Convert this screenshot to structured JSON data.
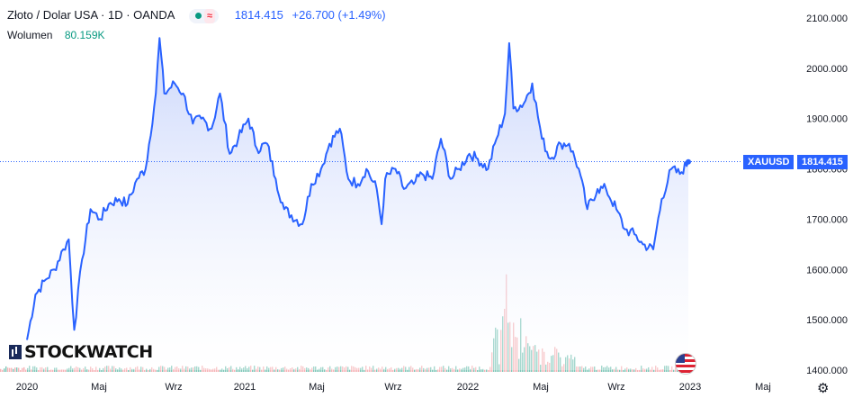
{
  "header": {
    "symbol_title": "Złoto / Dolar USA · 1D · OANDA",
    "price": "1814.415",
    "change": "+26.700 (+1.49%)",
    "wave_icon": "≈"
  },
  "volume": {
    "label": "Wolumen",
    "value": "80.159K"
  },
  "price_tag": {
    "ticker": "XAUUSD",
    "price": "1814.415"
  },
  "logo": {
    "text": "STOCKWATCH"
  },
  "settings_icon": "⚙",
  "colors": {
    "line": "#2962ff",
    "fill_top": "#c5d2fb",
    "vol_up": "#5fb9a8",
    "vol_down": "#f2a1a5",
    "tag": "#2962ff"
  },
  "chart_data": {
    "type": "area",
    "y_ticks": [
      "2100.000",
      "2000.000",
      "1900.000",
      "1800.000",
      "1700.000",
      "1600.000",
      "1500.000",
      "1400.000"
    ],
    "x_ticks": [
      "2020",
      "Maj",
      "Wrz",
      "2021",
      "Maj",
      "Wrz",
      "2022",
      "Maj",
      "Wrz",
      "2023",
      "Maj"
    ],
    "ylim": [
      1400,
      2100
    ],
    "current_price": 1814.415,
    "x": [
      "2020-01-01",
      "2020-01-15",
      "2020-02-01",
      "2020-02-15",
      "2020-03-01",
      "2020-03-10",
      "2020-03-19",
      "2020-04-01",
      "2020-04-15",
      "2020-05-01",
      "2020-05-15",
      "2020-06-01",
      "2020-06-15",
      "2020-07-01",
      "2020-07-15",
      "2020-08-01",
      "2020-08-07",
      "2020-08-15",
      "2020-09-01",
      "2020-09-15",
      "2020-10-01",
      "2020-10-15",
      "2020-11-01",
      "2020-11-15",
      "2020-12-01",
      "2020-12-15",
      "2021-01-01",
      "2021-01-15",
      "2021-02-01",
      "2021-02-15",
      "2021-03-01",
      "2021-03-31",
      "2021-04-15",
      "2021-05-01",
      "2021-05-15",
      "2021-06-01",
      "2021-06-15",
      "2021-07-01",
      "2021-07-15",
      "2021-08-01",
      "2021-08-09",
      "2021-08-15",
      "2021-09-01",
      "2021-09-15",
      "2021-10-01",
      "2021-10-15",
      "2021-11-01",
      "2021-11-15",
      "2021-12-01",
      "2021-12-15",
      "2022-01-01",
      "2022-01-15",
      "2022-02-01",
      "2022-02-15",
      "2022-03-01",
      "2022-03-08",
      "2022-03-15",
      "2022-04-01",
      "2022-04-15",
      "2022-05-01",
      "2022-05-15",
      "2022-06-01",
      "2022-06-15",
      "2022-07-01",
      "2022-07-15",
      "2022-08-01",
      "2022-08-15",
      "2022-09-01",
      "2022-09-15",
      "2022-10-01",
      "2022-10-15",
      "2022-11-01",
      "2022-11-15",
      "2022-12-01",
      "2022-12-15",
      "2022-12-29"
    ],
    "values": [
      1460,
      1550,
      1580,
      1600,
      1640,
      1660,
      1480,
      1620,
      1720,
      1700,
      1730,
      1740,
      1730,
      1780,
      1800,
      1950,
      2060,
      1950,
      1970,
      1950,
      1890,
      1900,
      1880,
      1950,
      1830,
      1860,
      1900,
      1840,
      1850,
      1780,
      1720,
      1690,
      1770,
      1800,
      1850,
      1880,
      1780,
      1770,
      1800,
      1760,
      1690,
      1780,
      1800,
      1760,
      1770,
      1790,
      1780,
      1860,
      1780,
      1800,
      1830,
      1820,
      1800,
      1860,
      1910,
      2050,
      1920,
      1930,
      1970,
      1860,
      1820,
      1850,
      1850,
      1800,
      1720,
      1760,
      1760,
      1720,
      1680,
      1670,
      1650,
      1640,
      1740,
      1800,
      1790,
      1814
    ]
  }
}
